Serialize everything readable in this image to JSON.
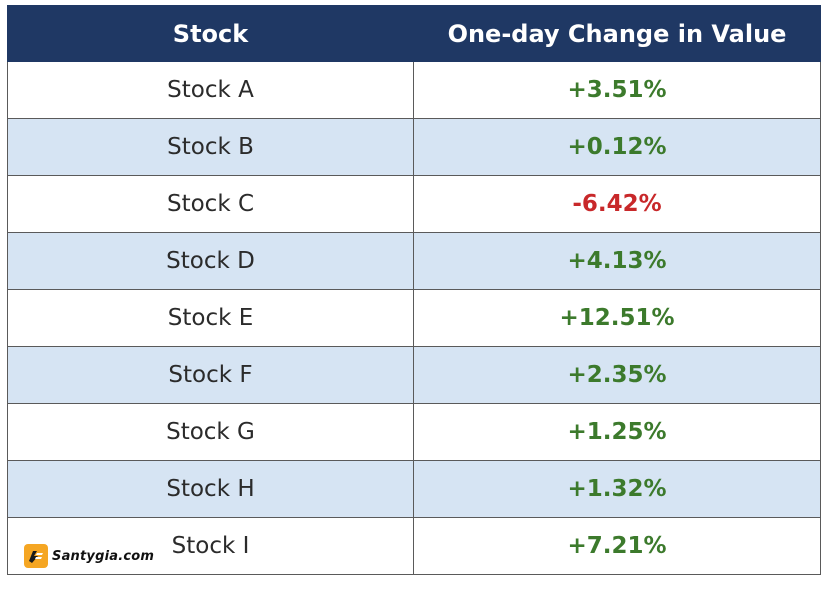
{
  "table": {
    "headers": {
      "stock": "Stock",
      "change": "One-day Change in Value"
    },
    "rows": [
      {
        "stock": "Stock A",
        "change": "+3.51%",
        "direction": "up"
      },
      {
        "stock": "Stock B",
        "change": "+0.12%",
        "direction": "up"
      },
      {
        "stock": "Stock C",
        "change": "-6.42%",
        "direction": "down"
      },
      {
        "stock": "Stock D",
        "change": "+4.13%",
        "direction": "up"
      },
      {
        "stock": "Stock E",
        "change": "+12.51%",
        "direction": "up"
      },
      {
        "stock": "Stock F",
        "change": "+2.35%",
        "direction": "up"
      },
      {
        "stock": "Stock G",
        "change": "+1.25%",
        "direction": "up"
      },
      {
        "stock": "Stock H",
        "change": "+1.32%",
        "direction": "up"
      },
      {
        "stock": "Stock I",
        "change": "+7.21%",
        "direction": "up"
      }
    ]
  },
  "watermark": {
    "text": "Santygia.com",
    "icon": "santygia-logo-icon"
  },
  "colors": {
    "header_bg": "#1f3864",
    "alt_row_bg": "#d6e4f3",
    "positive": "#3c7a2c",
    "negative": "#c8282a"
  }
}
